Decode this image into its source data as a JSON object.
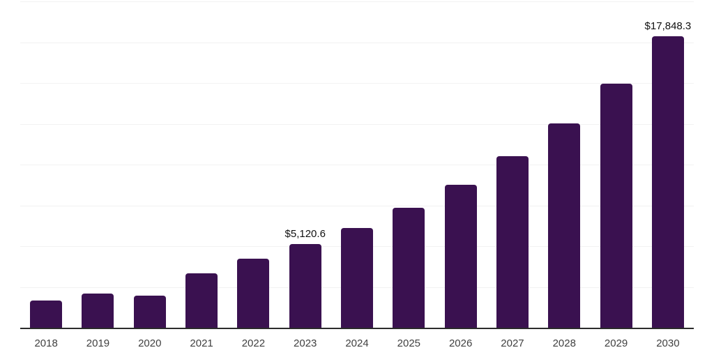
{
  "chart": {
    "colors": {
      "background": "#ffffff",
      "bar": "#3a1150",
      "axis_line": "#2b2b2b",
      "gridline": "#f2f2f2",
      "tick_label": "#404040",
      "data_label": "#111111"
    }
  },
  "chart_data": {
    "type": "bar",
    "title": "",
    "xlabel": "",
    "ylabel": "",
    "categories": [
      "2018",
      "2019",
      "2020",
      "2021",
      "2022",
      "2023",
      "2024",
      "2025",
      "2026",
      "2027",
      "2028",
      "2029",
      "2030"
    ],
    "values": [
      1670,
      2090,
      1970,
      3340,
      4250,
      5120.6,
      6130,
      7350,
      8780,
      10500,
      12530,
      14950,
      17848.3
    ],
    "ylim": [
      0,
      20000
    ],
    "grid_interval": 2500,
    "grid": true,
    "legend": false,
    "labeled_points": [
      {
        "category": "2023",
        "label": "$5,120.6"
      },
      {
        "category": "2030",
        "label": "$17,848.3"
      }
    ]
  }
}
